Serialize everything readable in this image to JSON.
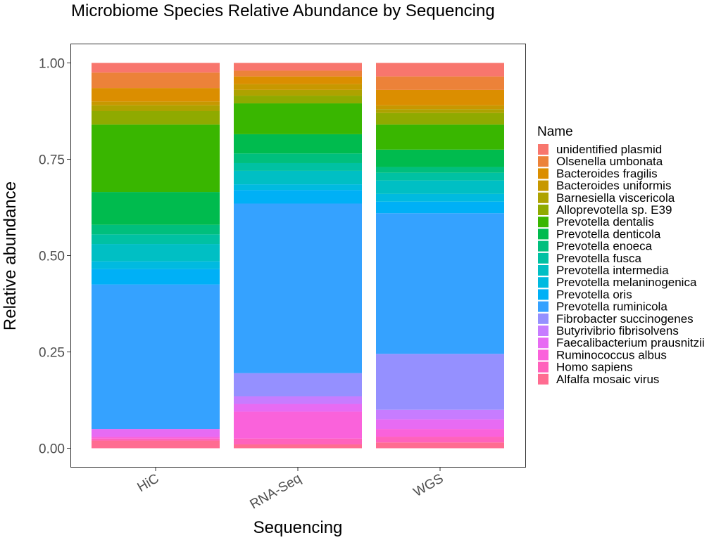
{
  "chart_data": {
    "type": "bar",
    "stacked": true,
    "title": "Microbiome Species Relative Abundance by Sequencing",
    "xlabel": "Sequencing",
    "ylabel": "Relative abundance",
    "ylim": [
      0,
      1
    ],
    "yticks": [
      "0.00",
      "0.25",
      "0.50",
      "0.75",
      "1.00"
    ],
    "categories": [
      "HiC",
      "RNA-Seq",
      "WGS"
    ],
    "legend_title": "Name",
    "legend_position": "right",
    "grid": false,
    "series": [
      {
        "name": "unidentified plasmid",
        "color": "#F8766D",
        "values": [
          0.025,
          0.02,
          0.035
        ]
      },
      {
        "name": "Olsenella umbonata",
        "color": "#EC8239",
        "values": [
          0.04,
          0.015,
          0.035
        ]
      },
      {
        "name": "Bacteroides fragilis",
        "color": "#DB8E00",
        "values": [
          0.035,
          0.02,
          0.04
        ]
      },
      {
        "name": "Bacteroides uniformis",
        "color": "#C79800",
        "values": [
          0.01,
          0.015,
          0.01
        ]
      },
      {
        "name": "Barnesiella viscericola",
        "color": "#AEA200",
        "values": [
          0.015,
          0.015,
          0.01
        ]
      },
      {
        "name": "Alloprevotella sp. E39",
        "color": "#8FAA00",
        "values": [
          0.035,
          0.02,
          0.03
        ]
      },
      {
        "name": "Prevotella dentalis",
        "color": "#39B600",
        "values": [
          0.175,
          0.08,
          0.065
        ]
      },
      {
        "name": "Prevotella denticola",
        "color": "#00BB4E",
        "values": [
          0.085,
          0.05,
          0.045
        ]
      },
      {
        "name": "Prevotella enoeca",
        "color": "#00BF7D",
        "values": [
          0.025,
          0.025,
          0.015
        ]
      },
      {
        "name": "Prevotella fusca",
        "color": "#00C1A3",
        "values": [
          0.025,
          0.02,
          0.02
        ]
      },
      {
        "name": "Prevotella intermedia",
        "color": "#00BFC4",
        "values": [
          0.045,
          0.035,
          0.035
        ]
      },
      {
        "name": "Prevotella melaninogenica",
        "color": "#00BAE0",
        "values": [
          0.02,
          0.015,
          0.02
        ]
      },
      {
        "name": "Prevotella oris",
        "color": "#00B0F6",
        "values": [
          0.04,
          0.035,
          0.03
        ]
      },
      {
        "name": "Prevotella ruminicola",
        "color": "#35A2FF",
        "values": [
          0.375,
          0.44,
          0.365
        ]
      },
      {
        "name": "Fibrobacter succinogenes",
        "color": "#9590FF",
        "values": [
          0.0,
          0.06,
          0.145
        ]
      },
      {
        "name": "Butyrivibrio fibrisolvens",
        "color": "#C77CFF",
        "values": [
          0.0,
          0.02,
          0.025
        ]
      },
      {
        "name": "Faecalibacterium prausnitzii",
        "color": "#E76BF3",
        "values": [
          0.02,
          0.02,
          0.025
        ]
      },
      {
        "name": "Ruminococcus albus",
        "color": "#FA62DB",
        "values": [
          0.005,
          0.07,
          0.02
        ]
      },
      {
        "name": "Homo sapiens",
        "color": "#FF62BC",
        "values": [
          0.005,
          0.015,
          0.015
        ]
      },
      {
        "name": "Alfalfa mosaic virus",
        "color": "#FF6C91",
        "values": [
          0.02,
          0.01,
          0.015
        ]
      }
    ]
  }
}
